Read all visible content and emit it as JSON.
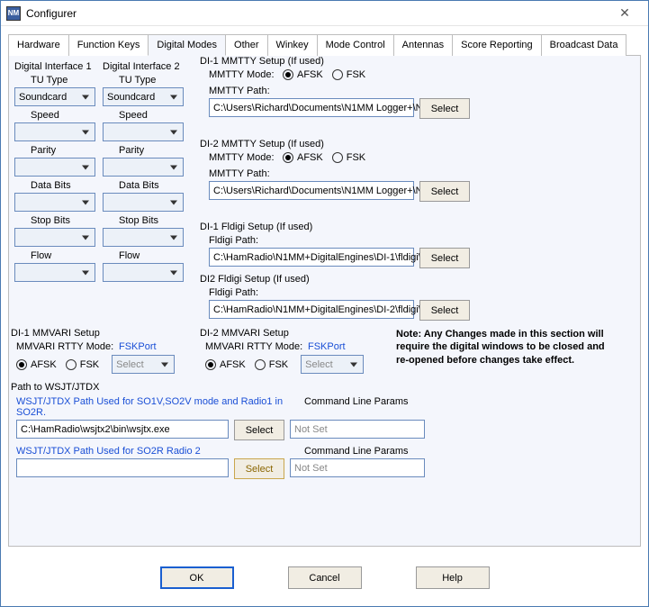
{
  "window": {
    "title": "Configurer"
  },
  "tabs": [
    "Hardware",
    "Function Keys",
    "Digital Modes",
    "Other",
    "Winkey",
    "Mode Control",
    "Antennas",
    "Score Reporting",
    "Broadcast Data"
  ],
  "activeTab": "Digital Modes",
  "di1": {
    "title": "Digital Interface 1",
    "tuTypeLabel": "TU Type",
    "tuType": "Soundcard",
    "speedLabel": "Speed",
    "speed": "",
    "parityLabel": "Parity",
    "parity": "",
    "dataBitsLabel": "Data Bits",
    "dataBits": "",
    "stopBitsLabel": "Stop Bits",
    "stopBits": "",
    "flowLabel": "Flow",
    "flow": ""
  },
  "di2": {
    "title": "Digital Interface 2",
    "tuTypeLabel": "TU Type",
    "tuType": "Soundcard",
    "speedLabel": "Speed",
    "speed": "",
    "parityLabel": "Parity",
    "parity": "",
    "dataBitsLabel": "Data Bits",
    "dataBits": "",
    "stopBitsLabel": "Stop Bits",
    "stopBits": "",
    "flowLabel": "Flow",
    "flow": ""
  },
  "mmtty1": {
    "title": "DI-1 MMTTY Setup (If used)",
    "modeLabel": "MMTTY Mode:",
    "afsk": "AFSK",
    "fsk": "FSK",
    "selected": "AFSK",
    "pathLabel": "MMTTY Path:",
    "path": "C:\\Users\\Richard\\Documents\\N1MM Logger+\\N",
    "select": "Select"
  },
  "mmtty2": {
    "title": "DI-2 MMTTY Setup (If used)",
    "modeLabel": "MMTTY Mode:",
    "afsk": "AFSK",
    "fsk": "FSK",
    "selected": "AFSK",
    "pathLabel": "MMTTY Path:",
    "path": "C:\\Users\\Richard\\Documents\\N1MM Logger+\\N",
    "select": "Select"
  },
  "fldigi1": {
    "title": "DI-1 Fldigi Setup (If used)",
    "pathLabel": "Fldigi Path:",
    "path": "C:\\HamRadio\\N1MM+DigitalEngines\\DI-1\\fldigi\\f",
    "select": "Select"
  },
  "fldigi2": {
    "title": "DI2 Fldigi Setup (If used)",
    "pathLabel": "Fldigi Path:",
    "path": "C:\\HamRadio\\N1MM+DigitalEngines\\DI-2\\fldigi\\f",
    "select": "Select"
  },
  "mmvari1": {
    "title": "DI-1 MMVARI Setup",
    "modeLabel": "MMVARI RTTY Mode:",
    "fskport": "FSKPort",
    "afsk": "AFSK",
    "fsk": "FSK",
    "selected": "AFSK",
    "port": "Select"
  },
  "mmvari2": {
    "title": "DI-2 MMVARI Setup",
    "modeLabel": "MMVARI RTTY Mode:",
    "fskport": "FSKPort",
    "afsk": "AFSK",
    "fsk": "FSK",
    "selected": "AFSK",
    "port": "Select"
  },
  "note": "Note: Any Changes made in this section will require the digital windows to be closed and re-opened before changes take effect.",
  "wsjt": {
    "groupLabel": "Path to WSJT/JTDX",
    "path1Label": "WSJT/JTDX Path Used for SO1V,SO2V mode and Radio1 in SO2R.",
    "cmdLabel": "Command Line Params",
    "path1": "C:\\HamRadio\\wsjtx2\\bin\\wsjtx.exe",
    "select": "Select",
    "cmd1": "Not Set",
    "path2Label": "WSJT/JTDX Path Used for SO2R Radio 2",
    "path2": "",
    "cmd2": "Not Set"
  },
  "buttons": {
    "ok": "OK",
    "cancel": "Cancel",
    "help": "Help"
  }
}
